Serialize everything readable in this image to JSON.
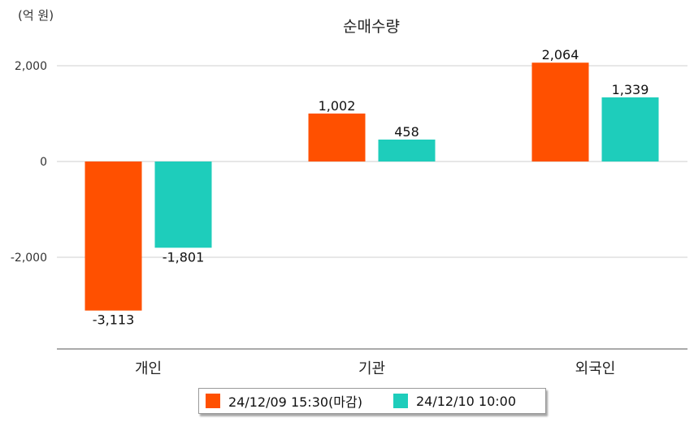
{
  "unit_label": "(억 원)",
  "chart_data": {
    "type": "bar",
    "title": "순매수량",
    "categories": [
      "개인",
      "기관",
      "외국인"
    ],
    "series": [
      {
        "name": "24/12/09 15:30(마감)",
        "color": "#ff5000",
        "values": [
          -3113,
          1002,
          2064
        ],
        "labels": [
          "-3,113",
          "1,002",
          "2,064"
        ]
      },
      {
        "name": "24/12/10 10:00",
        "color": "#1ecdbb",
        "values": [
          -1801,
          458,
          1339
        ],
        "labels": [
          "-1,801",
          "458",
          "1,339"
        ]
      }
    ],
    "y_ticks": [
      2000,
      0,
      -2000
    ],
    "y_tick_labels": [
      "2,000",
      "0",
      "-2,000"
    ],
    "ylim": [
      -3900,
      2500
    ],
    "grid": true,
    "legend_position": "bottom"
  }
}
